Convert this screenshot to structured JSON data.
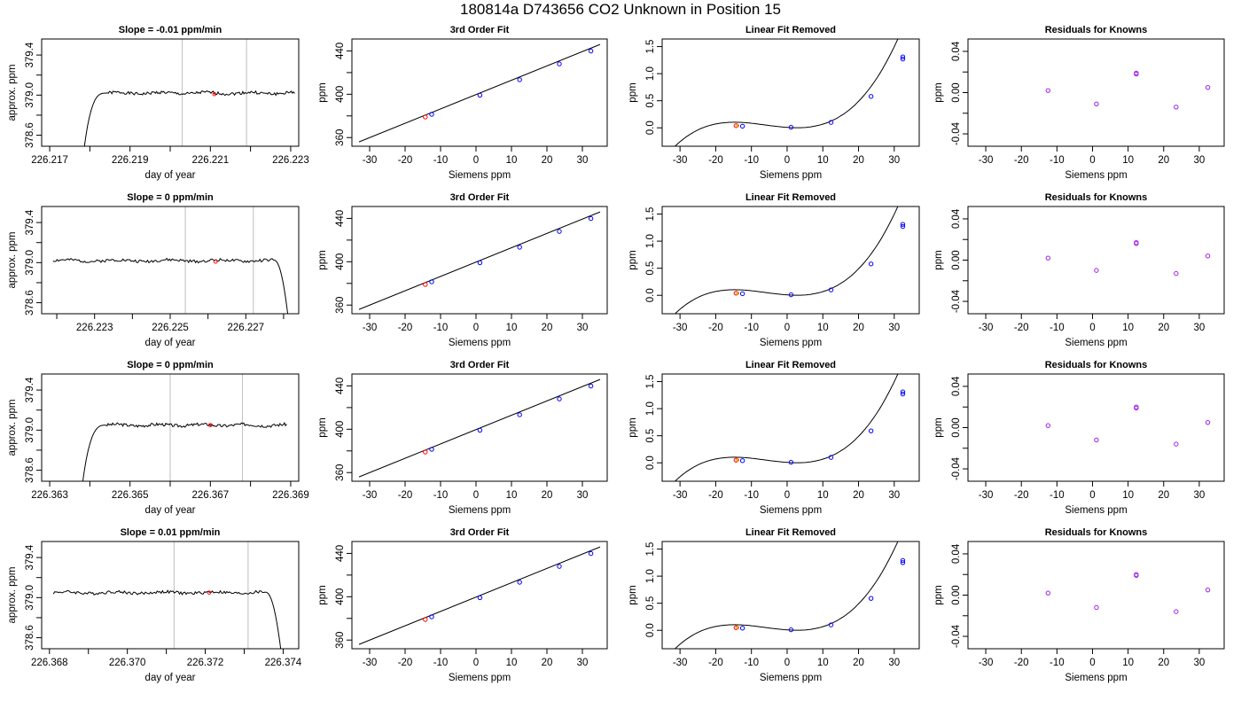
{
  "figure": {
    "title": "180814a      D743656   CO2 Unknown in Position  15"
  },
  "colors": {
    "line": "#000000",
    "frame": "#000000",
    "vline": "#bebebe",
    "known_point": "#0000ff",
    "unknown_point": "#ff0000",
    "unknown_point_alt": "#ff8c00",
    "residual_point": "#a020f0"
  },
  "chart_data": [
    {
      "type": "line",
      "title": "Slope =  -0.01  ppm/min",
      "xlabel": "day of year",
      "ylabel": "approx. ppm",
      "xlim": [
        226.2168,
        226.2232
      ],
      "ylim": [
        378.49,
        379.56
      ],
      "xticks": [
        226.217,
        226.218,
        226.219,
        226.22,
        226.221,
        226.222,
        226.223
      ],
      "xticklabels": [
        "226.217",
        "",
        "226.219",
        "",
        "226.221",
        "",
        "226.223"
      ],
      "yticks": [
        378.6,
        378.8,
        379.0,
        379.2,
        379.4
      ],
      "yticklabels": [
        "378.6",
        "",
        "379.0",
        "",
        "379.4"
      ],
      "vlines": [
        226.2203,
        226.2219
      ],
      "marker": {
        "x": 226.2211,
        "y": 379.01
      },
      "series": [
        {
          "rise": [
            226.21785,
            226.2184
          ],
          "start_y": 378.45,
          "plateau": 379.02,
          "x_end": 226.2231,
          "seed": 1
        }
      ]
    },
    {
      "type": "scatter",
      "title": "3rd Order Fit",
      "xlabel": "Siemens ppm",
      "ylabel": "ppm",
      "xlim": [
        -35,
        37
      ],
      "ylim": [
        352,
        451
      ],
      "xticks": [
        -30,
        -20,
        -10,
        0,
        10,
        20,
        30
      ],
      "xticklabels": [
        "-30",
        "-20",
        "-10",
        "0",
        "10",
        "20",
        "30"
      ],
      "yticks": [
        360,
        380,
        400,
        420,
        440
      ],
      "yticklabels": [
        "360",
        "",
        "400",
        "",
        "440"
      ],
      "fit": {
        "x0": -33,
        "x1": 35,
        "y0": 356,
        "y1": 446
      },
      "known_x": [
        -12.5,
        1.1,
        12.3,
        23.5,
        32.4
      ],
      "known_y": [
        381.5,
        399.1,
        413.4,
        428.0,
        439.9
      ],
      "unknown": {
        "x": -14.3,
        "y": 379.0
      }
    },
    {
      "type": "scatter",
      "title": "Linear Fit Removed",
      "xlabel": "Siemens ppm",
      "ylabel": "ppm",
      "xlim": [
        -35,
        37
      ],
      "ylim": [
        -0.34,
        1.64
      ],
      "xticks": [
        -30,
        -20,
        -10,
        0,
        10,
        20,
        30
      ],
      "xticklabels": [
        "-30",
        "-20",
        "-10",
        "0",
        "10",
        "20",
        "30"
      ],
      "yticks": [
        0.0,
        0.5,
        1.0,
        1.5
      ],
      "yticklabels": [
        "0.0",
        "0.5",
        "1.0",
        "1.5"
      ],
      "fit": {
        "x_from": -33.3,
        "x_to": 35,
        "a": 3.76e-05,
        "b": 0.00068,
        "c": -0.0046,
        "d": 0.008
      },
      "known_x": [
        -12.5,
        1.1,
        12.3,
        23.5,
        32.4,
        32.4
      ],
      "known_y": [
        0.03,
        0.01,
        0.1,
        0.58,
        1.27,
        1.31
      ],
      "unknown": {
        "x": -14.3,
        "y": 0.04
      }
    },
    {
      "type": "scatter",
      "title": "Residuals for Knowns",
      "xlabel": "Siemens ppm",
      "ylabel": "ppm",
      "xlim": [
        -35,
        37
      ],
      "ylim": [
        -0.052,
        0.052
      ],
      "xticks": [
        -30,
        -20,
        -10,
        0,
        10,
        20,
        30
      ],
      "xticklabels": [
        "-30",
        "-20",
        "-10",
        "0",
        "10",
        "20",
        "30"
      ],
      "yticks": [
        -0.04,
        -0.02,
        0.0,
        0.02,
        0.04
      ],
      "yticklabels": [
        "-0.04",
        "",
        "0.00",
        "",
        "0.04"
      ],
      "known_x": [
        -12.5,
        1.1,
        12.3,
        12.3,
        23.5,
        32.4
      ],
      "known_y": [
        0.002,
        -0.011,
        0.018,
        0.019,
        -0.014,
        0.005
      ]
    },
    {
      "type": "line",
      "title": "Slope =  0  ppm/min",
      "xlabel": "day of year",
      "ylabel": "approx. ppm",
      "xlim": [
        226.2216,
        226.2284
      ],
      "ylim": [
        378.49,
        379.56
      ],
      "xticks": [
        226.222,
        226.223,
        226.224,
        226.225,
        226.226,
        226.227,
        226.228
      ],
      "xticklabels": [
        "",
        "226.223",
        "",
        "226.225",
        "",
        "226.227",
        ""
      ],
      "vlines": [
        226.2254,
        226.2272
      ],
      "yticks": [
        378.6,
        378.8,
        379.0,
        379.2,
        379.4
      ],
      "yticklabels": [
        "378.6",
        "",
        "379.0",
        "",
        "379.4"
      ],
      "marker": {
        "x": 226.2262,
        "y": 379.01
      },
      "series": [
        {
          "x_start": 226.2219,
          "plateau": 379.02,
          "fall": [
            226.2277,
            226.22812
          ],
          "end_y": 378.45,
          "seed": 2
        }
      ]
    },
    {
      "type": "scatter",
      "title": "3rd Order Fit",
      "xlabel": "Siemens ppm",
      "ylabel": "ppm",
      "xlim": [
        -35,
        37
      ],
      "ylim": [
        352,
        451
      ],
      "xticks": [
        -30,
        -20,
        -10,
        0,
        10,
        20,
        30
      ],
      "xticklabels": [
        "-30",
        "-20",
        "-10",
        "0",
        "10",
        "20",
        "30"
      ],
      "yticks": [
        360,
        380,
        400,
        420,
        440
      ],
      "yticklabels": [
        "360",
        "",
        "400",
        "",
        "440"
      ],
      "fit": {
        "x0": -33,
        "x1": 35,
        "y0": 356,
        "y1": 446
      },
      "known_x": [
        -12.5,
        1.1,
        12.3,
        23.5,
        32.4
      ],
      "known_y": [
        381.5,
        399.1,
        413.4,
        428.0,
        439.9
      ],
      "unknown": {
        "x": -14.3,
        "y": 379.0
      }
    },
    {
      "type": "scatter",
      "title": "Linear Fit Removed",
      "xlabel": "Siemens ppm",
      "ylabel": "ppm",
      "xlim": [
        -35,
        37
      ],
      "ylim": [
        -0.34,
        1.64
      ],
      "xticks": [
        -30,
        -20,
        -10,
        0,
        10,
        20,
        30
      ],
      "xticklabels": [
        "-30",
        "-20",
        "-10",
        "0",
        "10",
        "20",
        "30"
      ],
      "yticks": [
        0.0,
        0.5,
        1.0,
        1.5
      ],
      "yticklabels": [
        "0.0",
        "0.5",
        "1.0",
        "1.5"
      ],
      "fit": {
        "x_from": -33.3,
        "x_to": 35,
        "a": 3.76e-05,
        "b": 0.00068,
        "c": -0.0046,
        "d": 0.008
      },
      "known_x": [
        -12.5,
        1.1,
        12.3,
        23.5,
        32.4,
        32.4
      ],
      "known_y": [
        0.03,
        0.01,
        0.1,
        0.58,
        1.27,
        1.31
      ],
      "unknown": {
        "x": -14.3,
        "y": 0.04
      }
    },
    {
      "type": "scatter",
      "title": "Residuals for Knowns",
      "xlabel": "Siemens ppm",
      "ylabel": "ppm",
      "xlim": [
        -35,
        37
      ],
      "ylim": [
        -0.052,
        0.052
      ],
      "xticks": [
        -30,
        -20,
        -10,
        0,
        10,
        20,
        30
      ],
      "xticklabels": [
        "-30",
        "-20",
        "-10",
        "0",
        "10",
        "20",
        "30"
      ],
      "yticks": [
        -0.04,
        -0.02,
        0.0,
        0.02,
        0.04
      ],
      "yticklabels": [
        "-0.04",
        "",
        "0.00",
        "",
        "0.04"
      ],
      "known_x": [
        -12.5,
        1.1,
        12.3,
        12.3,
        23.5,
        32.4
      ],
      "known_y": [
        0.002,
        -0.01,
        0.016,
        0.017,
        -0.013,
        0.004
      ]
    },
    {
      "type": "line",
      "title": "Slope =  0  ppm/min",
      "xlabel": "day of year",
      "ylabel": "approx. ppm",
      "xlim": [
        226.3628,
        226.3692
      ],
      "ylim": [
        378.49,
        379.56
      ],
      "xticks": [
        226.363,
        226.364,
        226.365,
        226.366,
        226.367,
        226.368,
        226.369
      ],
      "xticklabels": [
        "226.363",
        "",
        "226.365",
        "",
        "226.367",
        "",
        "226.369"
      ],
      "vlines": [
        226.366,
        226.3678
      ],
      "yticks": [
        378.6,
        378.8,
        379.0,
        379.2,
        379.4
      ],
      "yticklabels": [
        "378.6",
        "",
        "379.0",
        "",
        "379.4"
      ],
      "marker": {
        "x": 226.367,
        "y": 379.05
      },
      "series": [
        {
          "rise": [
            226.36381,
            226.3644
          ],
          "start_y": 378.45,
          "plateau": 379.05,
          "x_end": 226.3689,
          "seed": 3
        }
      ]
    },
    {
      "type": "scatter",
      "title": "3rd Order Fit",
      "xlabel": "Siemens ppm",
      "ylabel": "ppm",
      "xlim": [
        -35,
        37
      ],
      "ylim": [
        352,
        451
      ],
      "xticks": [
        -30,
        -20,
        -10,
        0,
        10,
        20,
        30
      ],
      "xticklabels": [
        "-30",
        "-20",
        "-10",
        "0",
        "10",
        "20",
        "30"
      ],
      "yticks": [
        360,
        380,
        400,
        420,
        440
      ],
      "yticklabels": [
        "360",
        "",
        "400",
        "",
        "440"
      ],
      "fit": {
        "x0": -33,
        "x1": 35,
        "y0": 356,
        "y1": 446
      },
      "known_x": [
        -12.5,
        1.1,
        12.3,
        23.5,
        32.4
      ],
      "known_y": [
        381.5,
        399.1,
        413.4,
        428.0,
        439.9
      ],
      "unknown": {
        "x": -14.3,
        "y": 379.0
      }
    },
    {
      "type": "scatter",
      "title": "Linear Fit Removed",
      "xlabel": "Siemens ppm",
      "ylabel": "ppm",
      "xlim": [
        -35,
        37
      ],
      "ylim": [
        -0.34,
        1.64
      ],
      "xticks": [
        -30,
        -20,
        -10,
        0,
        10,
        20,
        30
      ],
      "xticklabels": [
        "-30",
        "-20",
        "-10",
        "0",
        "10",
        "20",
        "30"
      ],
      "yticks": [
        0.0,
        0.5,
        1.0,
        1.5
      ],
      "yticklabels": [
        "0.0",
        "0.5",
        "1.0",
        "1.5"
      ],
      "fit": {
        "x_from": -33.3,
        "x_to": 35,
        "a": 3.76e-05,
        "b": 0.00068,
        "c": -0.0046,
        "d": 0.008
      },
      "known_x": [
        -12.5,
        1.1,
        12.3,
        23.5,
        32.4,
        32.4
      ],
      "known_y": [
        0.04,
        0.01,
        0.1,
        0.59,
        1.27,
        1.31
      ],
      "unknown": {
        "x": -14.3,
        "y": 0.05
      }
    },
    {
      "type": "scatter",
      "title": "Residuals for Knowns",
      "xlabel": "Siemens ppm",
      "ylabel": "ppm",
      "xlim": [
        -35,
        37
      ],
      "ylim": [
        -0.052,
        0.052
      ],
      "xticks": [
        -30,
        -20,
        -10,
        0,
        10,
        20,
        30
      ],
      "xticklabels": [
        "-30",
        "-20",
        "-10",
        "0",
        "10",
        "20",
        "30"
      ],
      "yticks": [
        -0.04,
        -0.02,
        0.0,
        0.02,
        0.04
      ],
      "yticklabels": [
        "-0.04",
        "",
        "0.00",
        "",
        "0.04"
      ],
      "known_x": [
        -12.5,
        1.1,
        12.3,
        12.3,
        23.5,
        32.4
      ],
      "known_y": [
        0.002,
        -0.012,
        0.019,
        0.02,
        -0.016,
        0.005
      ]
    },
    {
      "type": "line",
      "title": "Slope =  0.01  ppm/min",
      "xlabel": "day of year",
      "ylabel": "approx. ppm",
      "xlim": [
        226.3678,
        226.3744
      ],
      "ylim": [
        378.49,
        379.56
      ],
      "xticks": [
        226.368,
        226.369,
        226.37,
        226.371,
        226.372,
        226.373,
        226.374
      ],
      "xticklabels": [
        "226.368",
        "",
        "226.370",
        "",
        "226.372",
        "",
        "226.374"
      ],
      "vlines": [
        226.3712,
        226.3731
      ],
      "yticks": [
        378.6,
        378.8,
        379.0,
        379.2,
        379.4
      ],
      "yticklabels": [
        "378.6",
        "",
        "379.0",
        "",
        "379.4"
      ],
      "marker": {
        "x": 226.3721,
        "y": 379.05
      },
      "series": [
        {
          "x_start": 226.3681,
          "plateau": 379.05,
          "fall": [
            226.3735,
            226.37395
          ],
          "end_y": 378.45,
          "seed": 4
        }
      ]
    },
    {
      "type": "scatter",
      "title": "3rd Order Fit",
      "xlabel": "Siemens ppm",
      "ylabel": "ppm",
      "xlim": [
        -35,
        37
      ],
      "ylim": [
        352,
        451
      ],
      "xticks": [
        -30,
        -20,
        -10,
        0,
        10,
        20,
        30
      ],
      "xticklabels": [
        "-30",
        "-20",
        "-10",
        "0",
        "10",
        "20",
        "30"
      ],
      "yticks": [
        360,
        380,
        400,
        420,
        440
      ],
      "yticklabels": [
        "360",
        "",
        "400",
        "",
        "440"
      ],
      "fit": {
        "x0": -33,
        "x1": 35,
        "y0": 356,
        "y1": 446
      },
      "known_x": [
        -12.5,
        1.1,
        12.3,
        23.5,
        32.4
      ],
      "known_y": [
        381.5,
        399.1,
        413.4,
        428.0,
        439.9
      ],
      "unknown": {
        "x": -14.3,
        "y": 379.0
      }
    },
    {
      "type": "scatter",
      "title": "Linear Fit Removed",
      "xlabel": "Siemens ppm",
      "ylabel": "ppm",
      "xlim": [
        -35,
        37
      ],
      "ylim": [
        -0.34,
        1.64
      ],
      "xticks": [
        -30,
        -20,
        -10,
        0,
        10,
        20,
        30
      ],
      "xticklabels": [
        "-30",
        "-20",
        "-10",
        "0",
        "10",
        "20",
        "30"
      ],
      "yticks": [
        0.0,
        0.5,
        1.0,
        1.5
      ],
      "yticklabels": [
        "0.0",
        "0.5",
        "1.0",
        "1.5"
      ],
      "fit": {
        "x_from": -33.3,
        "x_to": 35,
        "a": 3.76e-05,
        "b": 0.00068,
        "c": -0.0046,
        "d": 0.008
      },
      "known_x": [
        -12.5,
        1.1,
        12.3,
        23.5,
        32.4,
        32.4
      ],
      "known_y": [
        0.04,
        0.01,
        0.1,
        0.59,
        1.25,
        1.29
      ],
      "unknown": {
        "x": -14.3,
        "y": 0.05
      }
    },
    {
      "type": "scatter",
      "title": "Residuals for Knowns",
      "xlabel": "Siemens ppm",
      "ylabel": "ppm",
      "xlim": [
        -35,
        37
      ],
      "ylim": [
        -0.052,
        0.052
      ],
      "xticks": [
        -30,
        -20,
        -10,
        0,
        10,
        20,
        30
      ],
      "xticklabels": [
        "-30",
        "-20",
        "-10",
        "0",
        "10",
        "20",
        "30"
      ],
      "yticks": [
        -0.04,
        -0.02,
        0.0,
        0.02,
        0.04
      ],
      "yticklabels": [
        "-0.04",
        "",
        "0.00",
        "",
        "0.04"
      ],
      "known_x": [
        -12.5,
        1.1,
        12.3,
        12.3,
        23.5,
        32.4
      ],
      "known_y": [
        0.002,
        -0.012,
        0.019,
        0.02,
        -0.016,
        0.005
      ]
    }
  ]
}
